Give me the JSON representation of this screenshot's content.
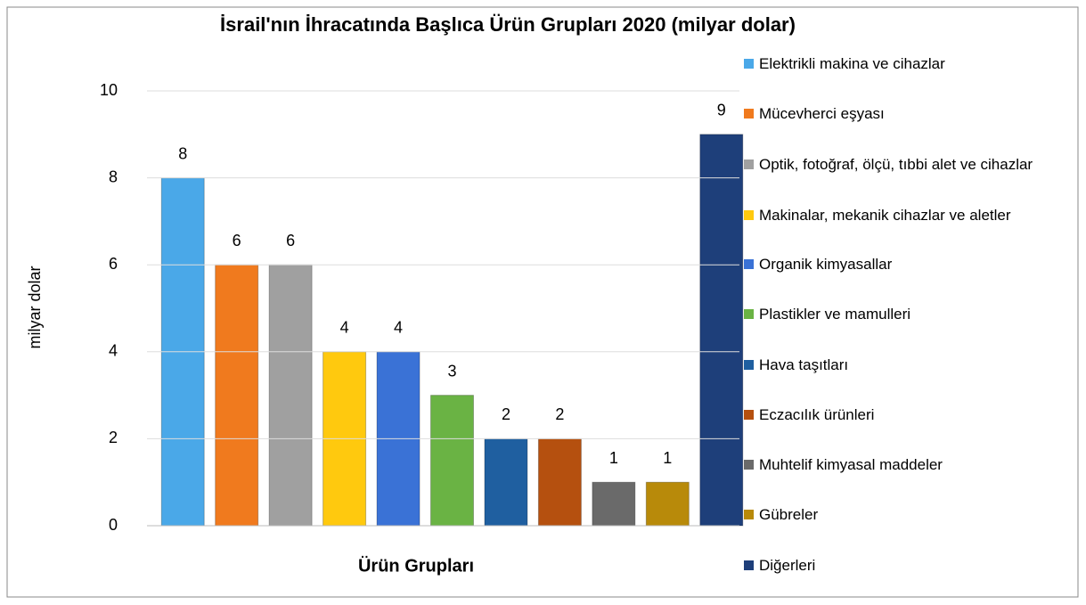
{
  "chart_data": {
    "type": "bar",
    "title": "İsrail'nın İhracatında Başlıca Ürün Grupları 2020 (milyar dolar)",
    "x_label": "Ürün Grupları",
    "y_label": "milyar dolar",
    "ylim": [
      0,
      10
    ],
    "yticks": [
      0,
      2,
      4,
      6,
      8,
      10
    ],
    "grid": true,
    "legend": "right",
    "series": [
      {
        "name": "Elektrikli makina ve cihazlar",
        "color": "#4aa8e8",
        "values": [
          8
        ]
      },
      {
        "name": "Mücevherci eşyası",
        "color": "#f07a1e",
        "values": [
          6
        ]
      },
      {
        "name": "Optik, fotoğraf, ölçü, tıbbi alet ve cihazlar",
        "color": "#a0a0a0",
        "values": [
          6
        ]
      },
      {
        "name": "Makinalar, mekanik cihazlar ve aletler",
        "color": "#ffc90e",
        "values": [
          4
        ]
      },
      {
        "name": "Organik kimyasallar",
        "color": "#3a72d6",
        "values": [
          4
        ]
      },
      {
        "name": "Plastikler ve mamulleri",
        "color": "#6ab344",
        "values": [
          3
        ]
      },
      {
        "name": "Hava taşıtları",
        "color": "#1f5fa0",
        "values": [
          2
        ]
      },
      {
        "name": "Eczacılık ürünleri",
        "color": "#b5500f",
        "values": [
          2
        ]
      },
      {
        "name": "Muhtelif kimyasal maddeler",
        "color": "#6a6a6a",
        "values": [
          1
        ]
      },
      {
        "name": "Gübreler",
        "color": "#b88a0a",
        "values": [
          1
        ]
      },
      {
        "name": "Diğerleri",
        "color": "#1e3f7a",
        "values": [
          9
        ]
      }
    ]
  }
}
